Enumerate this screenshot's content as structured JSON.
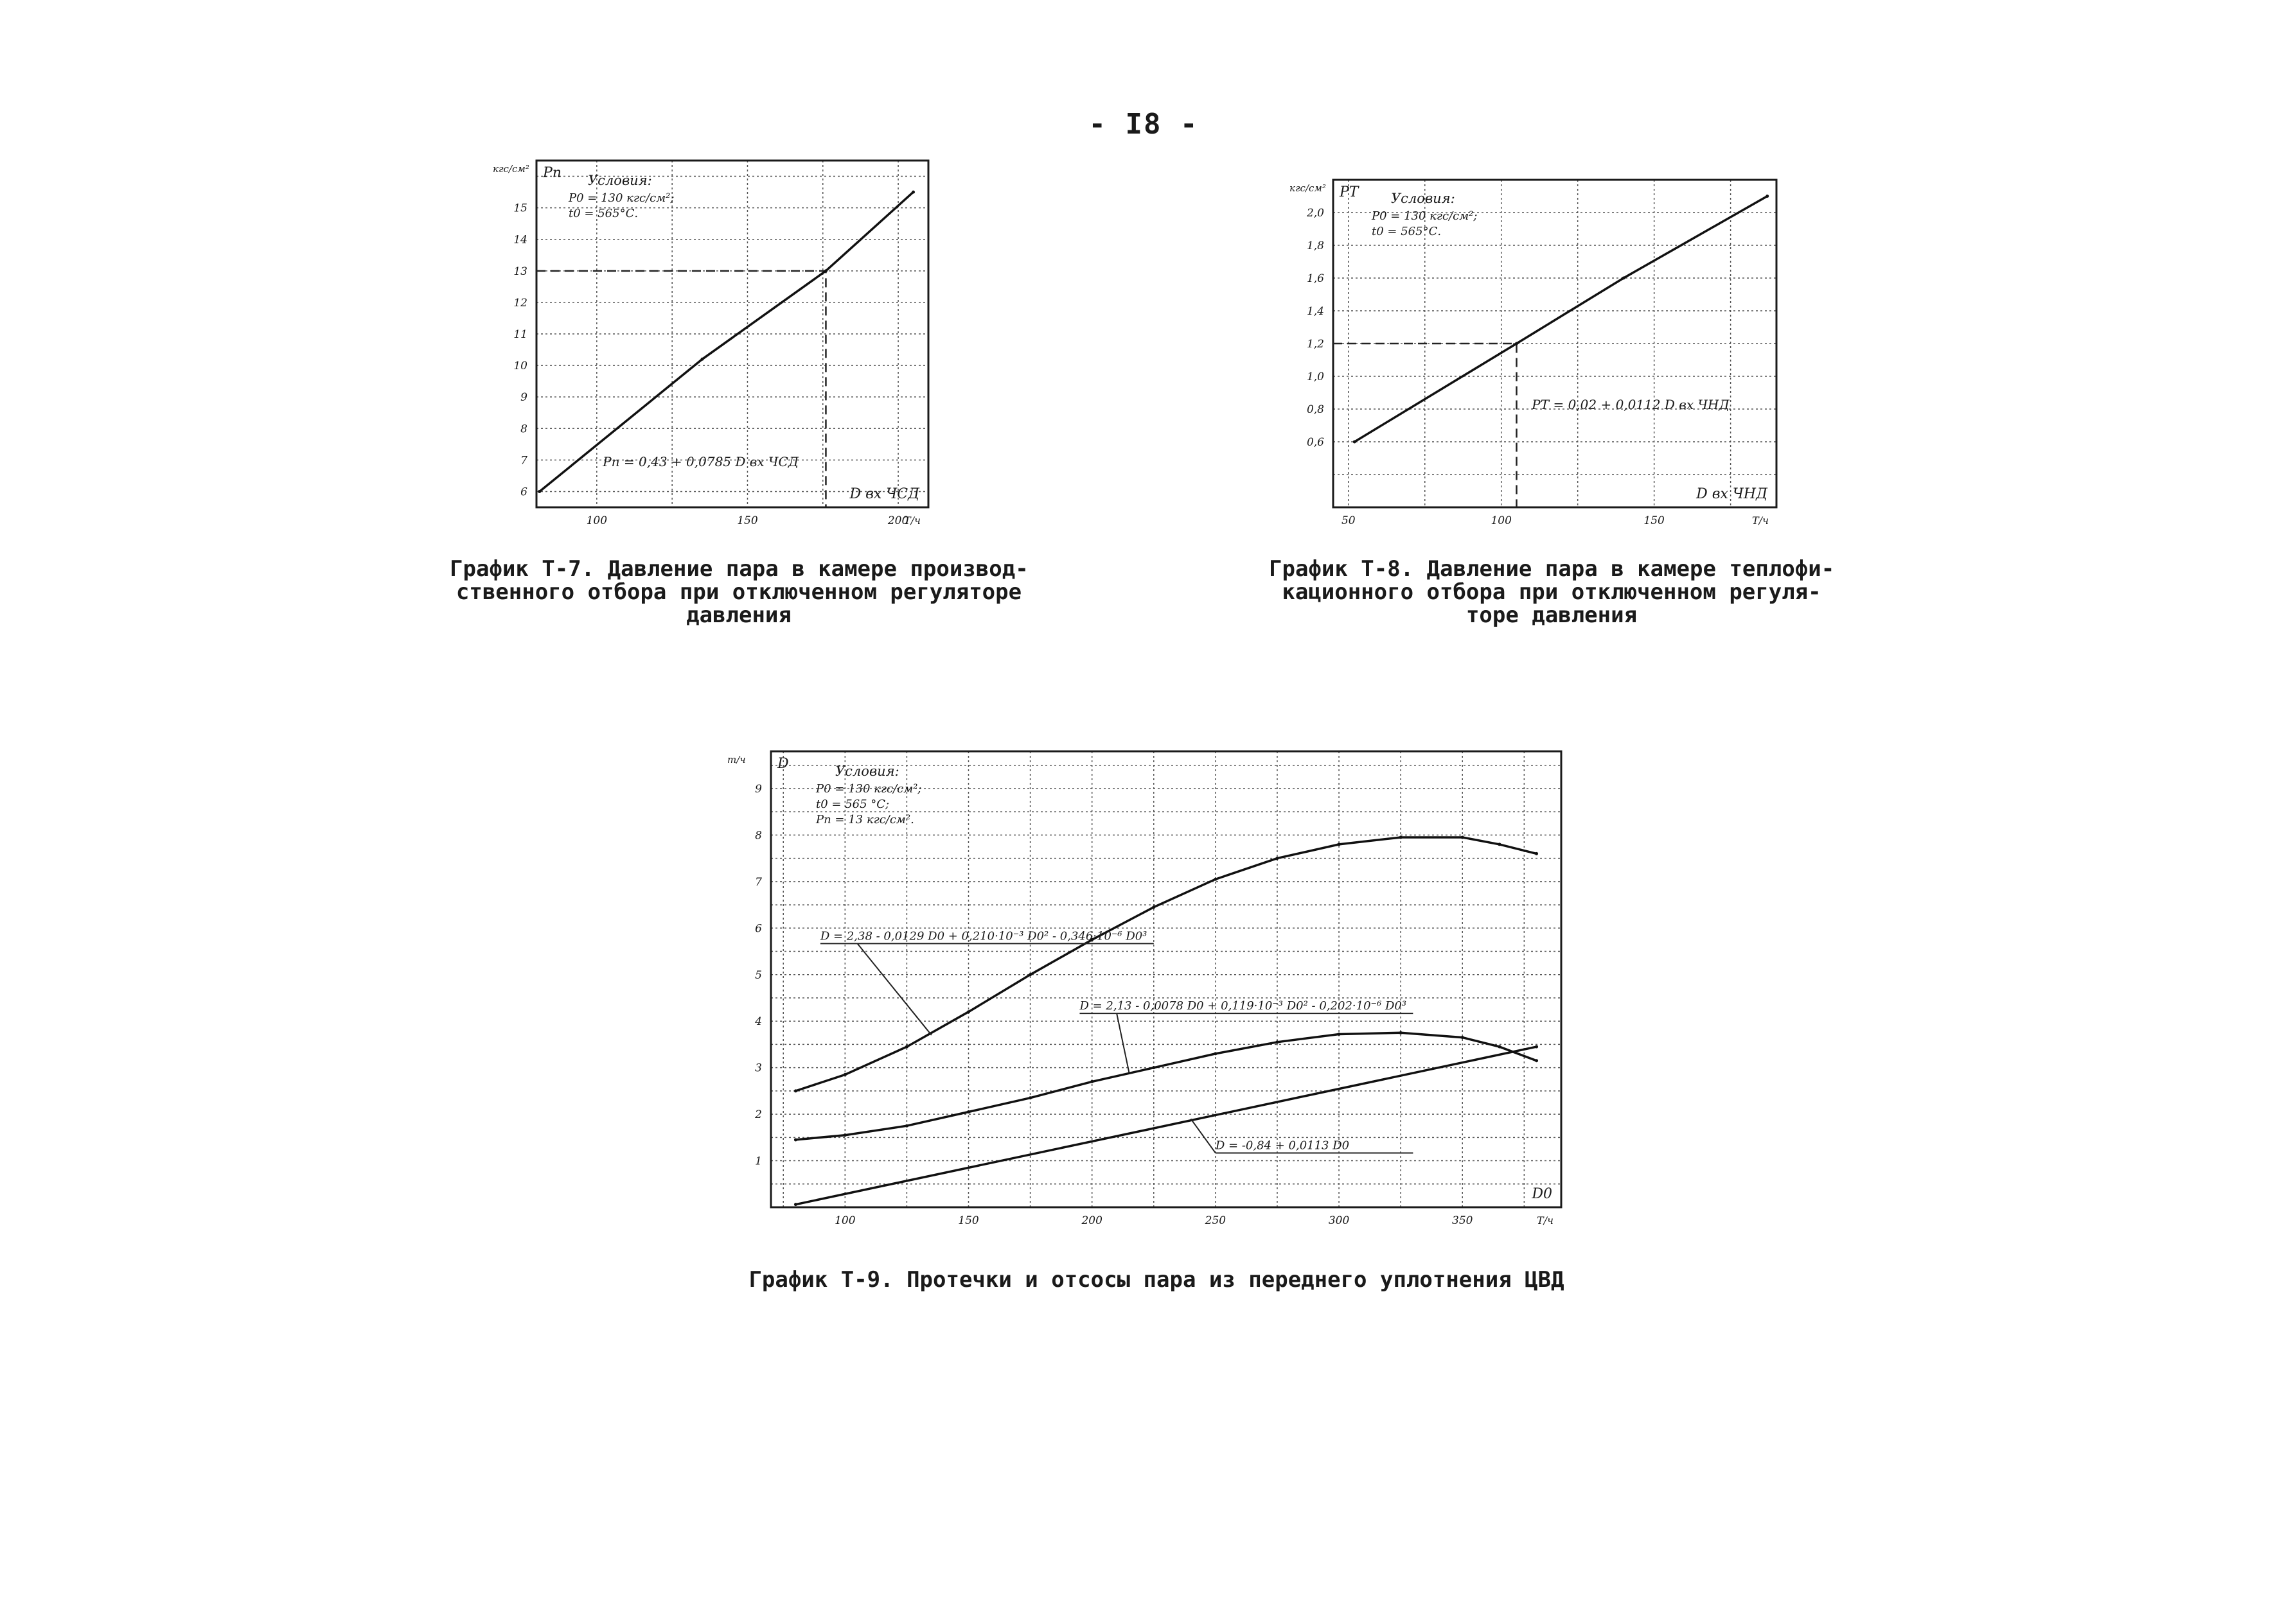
{
  "page": {
    "number": "- I8 -"
  },
  "chart_data": [
    {
      "id": "t7",
      "type": "line",
      "title": "График Т-7. Давление пара в камере производственного отбора при отключенном регуляторе давления",
      "caption_lines": [
        "График Т-7. Давление пара в камере производ-",
        "ственного отбора при отключенном регуляторе",
        "давления"
      ],
      "xlabel": "D вх ЧСД",
      "x_unit": "Т/ч",
      "ylabel": "Pп",
      "y_unit": "кгс/см²",
      "xlim": [
        80,
        210
      ],
      "ylim": [
        5.5,
        16.5
      ],
      "x_ticks": [
        100,
        150,
        200
      ],
      "y_ticks": [
        6,
        7,
        8,
        9,
        10,
        11,
        12,
        13,
        14,
        15
      ],
      "conditions_title": "Условия:",
      "conditions": [
        "P0 = 130 кгс/см²;",
        "t0 = 565°С."
      ],
      "formula": "Pп = 0,43 + 0,0785 D вх ЧСД",
      "grid": true,
      "series": [
        {
          "x": [
            81,
            135,
            176,
            205
          ],
          "y": [
            6.0,
            10.2,
            13.0,
            15.5
          ]
        }
      ],
      "guide": {
        "x": 176,
        "y": 13
      }
    },
    {
      "id": "t8",
      "type": "line",
      "title": "График Т-8. Давление пара в камере теплофикационного отбора при отключенном регуляторе давления",
      "caption_lines": [
        "График Т-8. Давление пара в камере теплофи-",
        "кационного отбора при отключенном регуля-",
        "торе давления"
      ],
      "xlabel": "D вх ЧНД",
      "x_unit": "Т/ч",
      "ylabel": "PТ",
      "y_unit": "кгс/см²",
      "xlim": [
        45,
        190
      ],
      "ylim": [
        0.2,
        2.2
      ],
      "x_ticks": [
        50,
        100,
        150
      ],
      "y_ticks": [
        0.6,
        0.8,
        1.0,
        1.2,
        1.4,
        1.6,
        1.8,
        2.0
      ],
      "y_tick_labels": [
        "0,6",
        "0,8",
        "1,0",
        "1,2",
        "1,4",
        "1,6",
        "1,8",
        "2,0"
      ],
      "conditions_title": "Условия:",
      "conditions": [
        "P0 = 130 кгс/см²;",
        "t0 = 565°С."
      ],
      "formula": "PТ = 0,02 + 0,0112 D вх ЧНД",
      "grid": true,
      "series": [
        {
          "x": [
            52,
            105,
            140,
            187
          ],
          "y": [
            0.6,
            1.2,
            1.6,
            2.1
          ]
        }
      ],
      "guide": {
        "x": 105,
        "y": 1.2
      }
    },
    {
      "id": "t9",
      "type": "line",
      "title": "График Т-9. Протечки и отсосы пара из переднего уплотнения ЦВД",
      "caption_lines": [
        "График Т-9. Протечки и отсосы пара из переднего уплотнения ЦВД"
      ],
      "xlabel": "D0",
      "x_unit": "Т/ч",
      "ylabel": "D",
      "y_unit": "т/ч",
      "xlim": [
        70,
        390
      ],
      "ylim": [
        0,
        9.8
      ],
      "x_ticks": [
        100,
        150,
        200,
        250,
        300,
        350
      ],
      "y_ticks": [
        1,
        2,
        3,
        4,
        5,
        6,
        7,
        8,
        9
      ],
      "conditions_title": "Условия:",
      "conditions": [
        "P0 = 130 кгс/см²;",
        "t0 = 565 °С;",
        "Pп = 13 кгс/см²."
      ],
      "formulas": [
        "D = 2,38 - 0,0129 D0 + 0,210·10⁻³ D0² - 0,346·10⁻⁶ D0³",
        "D = 2,13 - 0,0078 D0 + 0,119·10⁻³ D0² - 0,202·10⁻⁶ D0³",
        "D = -0,84 + 0,0113 D0"
      ],
      "grid": true,
      "series": [
        {
          "x": [
            80,
            100,
            125,
            150,
            175,
            200,
            225,
            250,
            275,
            300,
            325,
            350,
            365,
            380
          ],
          "y": [
            2.5,
            2.85,
            3.45,
            4.2,
            5.0,
            5.75,
            6.45,
            7.05,
            7.5,
            7.8,
            7.95,
            7.95,
            7.8,
            7.6
          ]
        },
        {
          "x": [
            80,
            100,
            125,
            150,
            175,
            200,
            225,
            250,
            275,
            300,
            325,
            350,
            365,
            380
          ],
          "y": [
            1.45,
            1.55,
            1.75,
            2.05,
            2.35,
            2.7,
            3.0,
            3.3,
            3.55,
            3.72,
            3.75,
            3.65,
            3.45,
            3.15
          ]
        },
        {
          "x": [
            80,
            380
          ],
          "y": [
            0.06,
            3.45
          ]
        }
      ]
    }
  ]
}
